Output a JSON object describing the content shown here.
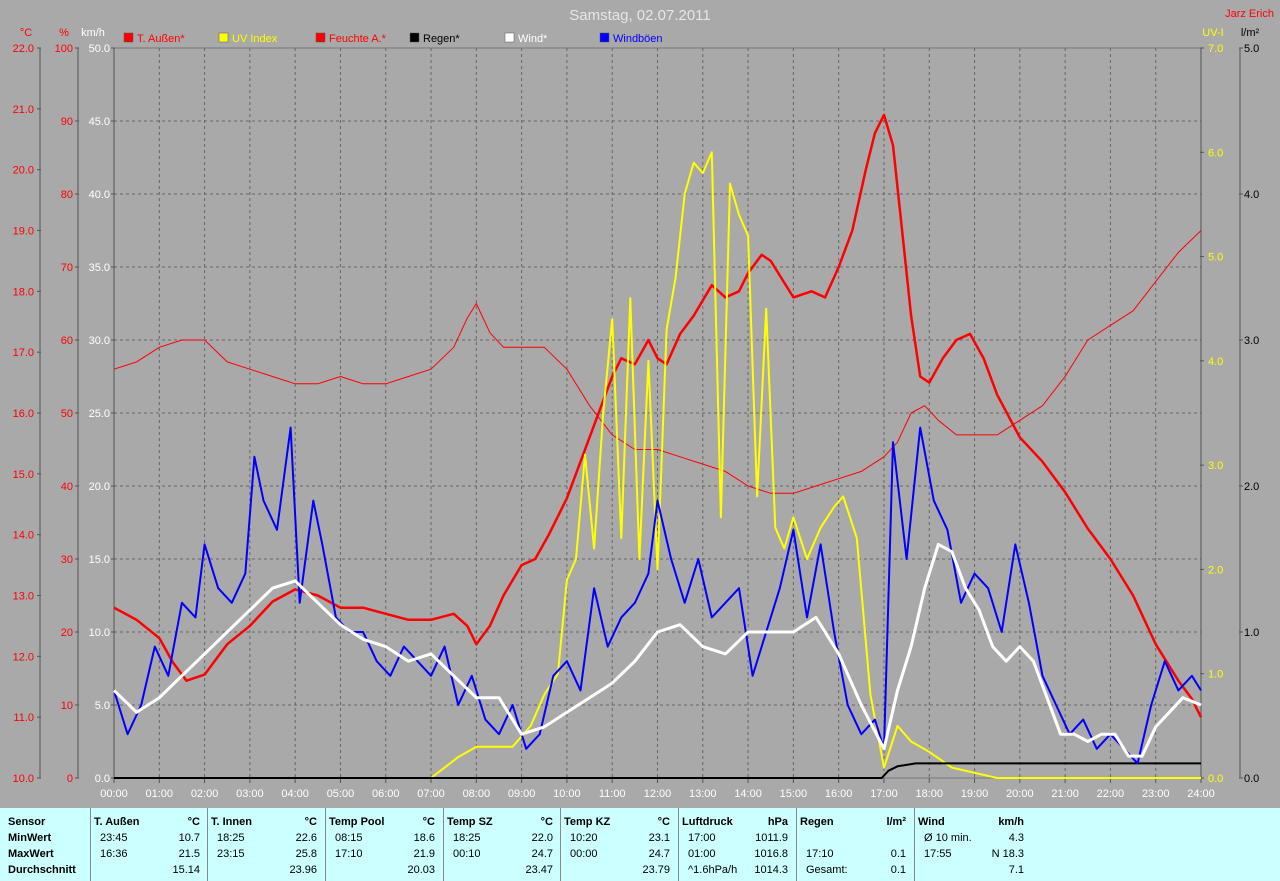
{
  "title": "Samstag, 02.07.2011",
  "author": "Jarz Erich",
  "colors": {
    "bg": "#a9a9a9",
    "red": "#ff0000",
    "yellow": "#ffff00",
    "white": "#ffffff",
    "blue": "#0000ff",
    "black": "#000000",
    "statsBg": "#ccffff"
  },
  "chart_data": {
    "type": "line",
    "x_range": [
      "00:00",
      "24:00"
    ],
    "x_ticks": [
      "00:00",
      "01:00",
      "02:00",
      "03:00",
      "04:00",
      "05:00",
      "06:00",
      "07:00",
      "08:00",
      "09:00",
      "10:00",
      "11:00",
      "12:00",
      "13:00",
      "14:00",
      "15:00",
      "16:00",
      "17:00",
      "18:00",
      "19:00",
      "20:00",
      "21:00",
      "22:00",
      "23:00",
      "24:00"
    ],
    "axes": {
      "temp": {
        "unit": "°C",
        "range": [
          10.0,
          22.0
        ],
        "ticks": [
          "10.0",
          "11.0",
          "12.0",
          "13.0",
          "14.0",
          "15.0",
          "16.0",
          "17.0",
          "18.0",
          "19.0",
          "20.0",
          "21.0",
          "22.0"
        ]
      },
      "hum": {
        "unit": "%",
        "range": [
          0,
          100
        ],
        "ticks": [
          "0",
          "10",
          "20",
          "30",
          "40",
          "50",
          "60",
          "70",
          "80",
          "90",
          "100"
        ]
      },
      "wind": {
        "unit": "km/h",
        "range": [
          0.0,
          50.0
        ],
        "ticks": [
          "0.0",
          "5.0",
          "10.0",
          "15.0",
          "20.0",
          "25.0",
          "30.0",
          "35.0",
          "40.0",
          "45.0",
          "50.0"
        ]
      },
      "uv": {
        "unit": "UV-I",
        "range": [
          0.0,
          7.0
        ],
        "ticks": [
          "0.0",
          "1.0",
          "2.0",
          "3.0",
          "4.0",
          "5.0",
          "6.0",
          "7.0"
        ]
      },
      "rain": {
        "unit": "l/m²",
        "range": [
          0.0,
          5.0
        ],
        "ticks": [
          "0.0",
          "1.0",
          "2.0",
          "3.0",
          "4.0",
          "5.0"
        ]
      }
    },
    "grid": true,
    "legend": [
      {
        "name": "T. Außen*",
        "color": "#ff0000"
      },
      {
        "name": "UV Index",
        "color": "#ffff00"
      },
      {
        "name": "Feuchte A.*",
        "color": "#ff0000"
      },
      {
        "name": "Regen*",
        "color": "#000000"
      },
      {
        "name": "Wind*",
        "color": "#ffffff"
      },
      {
        "name": "Windböen",
        "color": "#0000ff"
      }
    ],
    "series": [
      {
        "name": "T. Außen*",
        "axis": "temp",
        "color": "#ff0000",
        "width": 2.5,
        "x": [
          0,
          0.5,
          1,
          1.3,
          1.6,
          2,
          2.5,
          3,
          3.5,
          4,
          4.5,
          5,
          5.5,
          6,
          6.5,
          7,
          7.5,
          7.8,
          8,
          8.3,
          8.6,
          9,
          9.3,
          9.6,
          10,
          10.3,
          10.6,
          11,
          11.2,
          11.5,
          11.8,
          12,
          12.2,
          12.5,
          12.8,
          13.2,
          13.5,
          13.8,
          14,
          14.3,
          14.5,
          15,
          15.4,
          15.7,
          16,
          16.3,
          16.6,
          16.8,
          17,
          17.2,
          17.4,
          17.6,
          17.8,
          18,
          18.3,
          18.6,
          18.9,
          19.2,
          19.5,
          20,
          20.5,
          21,
          21.5,
          22,
          22.5,
          23,
          23.5,
          23.8,
          24
        ],
        "values": [
          12.8,
          12.6,
          12.3,
          11.9,
          11.6,
          11.7,
          12.2,
          12.5,
          12.9,
          13.1,
          13.0,
          12.8,
          12.8,
          12.7,
          12.6,
          12.6,
          12.7,
          12.5,
          12.2,
          12.5,
          13.0,
          13.5,
          13.6,
          14.0,
          14.6,
          15.2,
          15.8,
          16.6,
          16.9,
          16.8,
          17.2,
          16.9,
          16.8,
          17.3,
          17.6,
          18.1,
          17.9,
          18.0,
          18.3,
          18.6,
          18.5,
          17.9,
          18.0,
          17.9,
          18.4,
          19.0,
          20.0,
          20.6,
          20.9,
          20.4,
          19.0,
          17.6,
          16.6,
          16.5,
          16.9,
          17.2,
          17.3,
          16.9,
          16.3,
          15.6,
          15.2,
          14.7,
          14.1,
          13.6,
          13.0,
          12.2,
          11.6,
          11.3,
          11.0
        ]
      },
      {
        "name": "Feuchte A.*",
        "axis": "hum",
        "color": "#ff0000",
        "width": 1,
        "x": [
          0,
          0.5,
          1,
          1.5,
          2,
          2.5,
          3,
          3.5,
          4,
          4.5,
          5,
          5.5,
          6,
          6.5,
          7,
          7.5,
          7.8,
          8,
          8.3,
          8.6,
          9,
          9.5,
          10,
          10.5,
          11,
          11.5,
          12,
          12.5,
          13,
          13.5,
          14,
          14.5,
          15,
          15.5,
          16,
          16.5,
          17,
          17.3,
          17.6,
          17.9,
          18.2,
          18.6,
          19,
          19.5,
          20,
          20.5,
          21,
          21.5,
          22,
          22.5,
          23,
          23.5,
          24
        ],
        "values": [
          56,
          57,
          59,
          60,
          60,
          57,
          56,
          55,
          54,
          54,
          55,
          54,
          54,
          55,
          56,
          59,
          63,
          65,
          61,
          59,
          59,
          59,
          56,
          51,
          47,
          45,
          45,
          44,
          43,
          42,
          40,
          39,
          39,
          40,
          41,
          42,
          44,
          46,
          50,
          51,
          49,
          47,
          47,
          47,
          49,
          51,
          55,
          60,
          62,
          64,
          68,
          72,
          75
        ]
      },
      {
        "name": "UV Index",
        "axis": "uv",
        "color": "#ffff00",
        "width": 2,
        "x": [
          0,
          7,
          7.3,
          7.6,
          8,
          8.4,
          8.8,
          9.2,
          9.5,
          9.8,
          10,
          10.2,
          10.4,
          10.6,
          10.8,
          11,
          11.2,
          11.4,
          11.6,
          11.8,
          12,
          12.2,
          12.4,
          12.6,
          12.8,
          13,
          13.2,
          13.4,
          13.6,
          13.8,
          14,
          14.2,
          14.4,
          14.6,
          14.8,
          15,
          15.3,
          15.6,
          15.9,
          16.1,
          16.4,
          16.7,
          17,
          17.3,
          17.6,
          18,
          18.5,
          19,
          19.5,
          20,
          24
        ],
        "values": [
          0,
          0,
          0.1,
          0.2,
          0.3,
          0.3,
          0.3,
          0.5,
          0.8,
          1.0,
          1.9,
          2.1,
          3.1,
          2.2,
          3.5,
          4.4,
          2.3,
          4.6,
          2.1,
          4.0,
          2.0,
          4.3,
          4.8,
          5.6,
          5.9,
          5.8,
          6.0,
          2.5,
          5.7,
          5.4,
          5.2,
          2.7,
          4.5,
          2.4,
          2.2,
          2.5,
          2.1,
          2.4,
          2.6,
          2.7,
          2.3,
          0.8,
          0.1,
          0.5,
          0.35,
          0.25,
          0.1,
          0.05,
          0,
          0,
          0
        ]
      },
      {
        "name": "Regen*",
        "axis": "rain",
        "color": "#000000",
        "width": 2,
        "x": [
          0,
          16.95,
          17.1,
          17.3,
          17.5,
          17.7,
          18,
          19,
          20,
          21,
          22,
          23,
          24
        ],
        "values": [
          0,
          0,
          0.05,
          0.08,
          0.09,
          0.1,
          0.1,
          0.1,
          0.1,
          0.1,
          0.1,
          0.1,
          0.1
        ]
      },
      {
        "name": "Windböen",
        "axis": "wind",
        "color": "#0000ff",
        "width": 2,
        "jagged": true,
        "x": [
          0,
          0.3,
          0.6,
          0.9,
          1.2,
          1.5,
          1.8,
          2.0,
          2.3,
          2.6,
          2.9,
          3.1,
          3.3,
          3.6,
          3.9,
          4.1,
          4.4,
          4.6,
          4.9,
          5.2,
          5.5,
          5.8,
          6.1,
          6.4,
          6.7,
          7.0,
          7.3,
          7.6,
          7.9,
          8.2,
          8.5,
          8.8,
          9.1,
          9.4,
          9.7,
          10.0,
          10.3,
          10.6,
          10.9,
          11.2,
          11.5,
          11.8,
          12.0,
          12.3,
          12.6,
          12.9,
          13.2,
          13.5,
          13.8,
          14.1,
          14.4,
          14.7,
          15.0,
          15.3,
          15.6,
          15.9,
          16.2,
          16.5,
          16.8,
          17.0,
          17.2,
          17.5,
          17.8,
          18.1,
          18.4,
          18.7,
          19.0,
          19.3,
          19.6,
          19.9,
          20.2,
          20.5,
          20.8,
          21.1,
          21.4,
          21.7,
          22.0,
          22.3,
          22.6,
          22.9,
          23.2,
          23.5,
          23.8,
          24
        ],
        "values": [
          6,
          3,
          5,
          9,
          7,
          12,
          11,
          16,
          13,
          12,
          14,
          22,
          19,
          17,
          24,
          12,
          19,
          16,
          11,
          10,
          10,
          8,
          7,
          9,
          8,
          7,
          9,
          5,
          7,
          4,
          3,
          5,
          2,
          3,
          7,
          8,
          6,
          13,
          9,
          11,
          12,
          14,
          19,
          15,
          12,
          15,
          11,
          12,
          13,
          7,
          10,
          13,
          17,
          11,
          16,
          10,
          5,
          3,
          4,
          2,
          23,
          15,
          24,
          19,
          17,
          12,
          14,
          13,
          10,
          16,
          12,
          7,
          5,
          3,
          4,
          2,
          3,
          2,
          1,
          5,
          8,
          6,
          7,
          6
        ]
      },
      {
        "name": "Wind*",
        "axis": "wind",
        "color": "#ffffff",
        "width": 3,
        "x": [
          0,
          0.5,
          1,
          1.5,
          2,
          2.5,
          3,
          3.5,
          4,
          4.5,
          5,
          5.5,
          6,
          6.5,
          7,
          7.5,
          8,
          8.5,
          9,
          9.5,
          10,
          10.5,
          11,
          11.5,
          12,
          12.5,
          13,
          13.5,
          14,
          14.5,
          15,
          15.5,
          16,
          16.5,
          17,
          17.3,
          17.6,
          17.9,
          18.2,
          18.5,
          18.8,
          19.1,
          19.4,
          19.7,
          20,
          20.3,
          20.6,
          20.9,
          21.2,
          21.5,
          21.8,
          22.1,
          22.4,
          22.7,
          23,
          23.3,
          23.6,
          24
        ],
        "values": [
          6,
          4.5,
          5.5,
          7,
          8.5,
          10,
          11.5,
          13,
          13.5,
          12,
          10.5,
          9.5,
          9,
          8,
          8.5,
          7,
          5.5,
          5.5,
          3,
          3.5,
          4.5,
          5.5,
          6.5,
          8,
          10,
          10.5,
          9,
          8.5,
          10,
          10,
          10,
          11,
          8.5,
          5,
          2,
          6,
          9,
          13,
          16,
          15.5,
          13,
          11.5,
          9,
          8,
          9,
          8,
          5.5,
          3,
          3,
          2.5,
          3,
          3,
          1.5,
          1.5,
          3.5,
          4.5,
          5.5,
          5
        ]
      }
    ]
  },
  "stats": {
    "row_labels": [
      "Sensor",
      "MinWert",
      "MaxWert",
      "Durchschnitt"
    ],
    "groups": [
      {
        "header": "T. Außen",
        "unit": "°C",
        "rows": [
          [
            "23:45",
            "10.7"
          ],
          [
            "16:36",
            "21.5"
          ],
          [
            "",
            "15.14"
          ]
        ]
      },
      {
        "header": "T. Innen",
        "unit": "°C",
        "rows": [
          [
            "18:25",
            "22.6"
          ],
          [
            "23:15",
            "25.8"
          ],
          [
            "",
            "23.96"
          ]
        ]
      },
      {
        "header": "Temp Pool",
        "unit": "°C",
        "rows": [
          [
            "08:15",
            "18.6"
          ],
          [
            "17:10",
            "21.9"
          ],
          [
            "",
            "20.03"
          ]
        ]
      },
      {
        "header": "Temp SZ",
        "unit": "°C",
        "rows": [
          [
            "18:25",
            "22.0"
          ],
          [
            "00:10",
            "24.7"
          ],
          [
            "",
            "23.47"
          ]
        ]
      },
      {
        "header": "Temp KZ",
        "unit": "°C",
        "rows": [
          [
            "10:20",
            "23.1"
          ],
          [
            "00:00",
            "24.7"
          ],
          [
            "",
            "23.79"
          ]
        ]
      },
      {
        "header": "Luftdruck",
        "unit": "hPa",
        "rows": [
          [
            "17:00",
            "1011.9"
          ],
          [
            "01:00",
            "1016.8"
          ],
          [
            "^1.6hPa/h",
            "1014.3"
          ]
        ]
      },
      {
        "header": "Regen",
        "unit": "l/m²",
        "rows": [
          [
            "",
            ""
          ],
          [
            "17:10",
            "0.1"
          ],
          [
            "Gesamt:",
            "0.1"
          ]
        ]
      },
      {
        "header": "Wind",
        "unit": "km/h",
        "rows": [
          [
            "Ø 10 min.",
            "4.3"
          ],
          [
            "17:55",
            "N 18.3"
          ],
          [
            "",
            "7.1"
          ]
        ]
      }
    ]
  }
}
